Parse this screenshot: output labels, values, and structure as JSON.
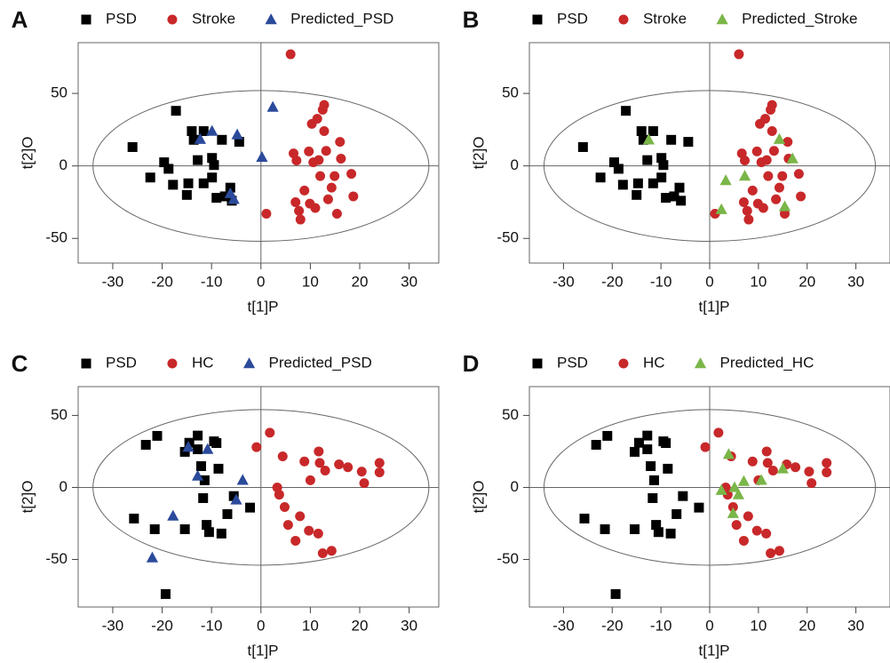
{
  "chart_data": [
    {
      "type": "scatter",
      "label": "A",
      "xlabel": "t[1]P",
      "ylabel": "t[2]O",
      "xlim": [
        -37,
        36
      ],
      "ylim": [
        -67,
        85
      ],
      "xticks": [
        -30,
        -20,
        -10,
        0,
        10,
        20,
        30
      ],
      "yticks": [
        -50,
        0,
        50
      ],
      "ellipse": [
        34,
        52
      ],
      "legend": "top",
      "series": [
        {
          "name": "PSD",
          "color": "#000000",
          "marker": "square",
          "x": [
            -17.2,
            -26,
            -22.4,
            -19.6,
            -18.7,
            -17.8,
            -15,
            -14.7,
            -14,
            -13.6,
            -11.6,
            -11.6,
            -12.8,
            -9.9,
            -9.5,
            -9,
            -7.9,
            -7.3,
            -6.2,
            -5.9,
            -4.4,
            -9.9
          ],
          "values": [
            38,
            13,
            -8,
            2.5,
            -2,
            -13,
            -20,
            -12,
            24,
            18,
            24,
            -12,
            4,
            5.5,
            0.6,
            -22,
            18,
            -21,
            -15,
            -24,
            16.6,
            -8
          ]
        },
        {
          "name": "Stroke",
          "color": "#c8282a",
          "marker": "circle",
          "x": [
            6,
            1.1,
            6.6,
            7.2,
            7,
            7.7,
            8,
            8.8,
            9.7,
            9.9,
            10.3,
            10.6,
            11,
            11.4,
            11.7,
            12,
            12.5,
            12.8,
            12.8,
            13.2,
            13.6,
            14.3,
            14.9,
            15.4,
            16,
            16.2,
            18.3,
            18.7
          ],
          "values": [
            77,
            -33,
            8.6,
            3.7,
            -25,
            -31,
            -37,
            -17,
            10,
            -26,
            29,
            2.5,
            -29,
            32.5,
            4,
            -7,
            38.7,
            42,
            24,
            10.4,
            -23,
            -15,
            -7,
            -33,
            16.6,
            5,
            -5.5,
            -21
          ]
        },
        {
          "name": "Predicted_PSD",
          "color": "#2b4a9b",
          "marker": "triangle",
          "x": [
            2.4,
            0.2,
            -9.9,
            -12.3,
            -4.8,
            -5.5,
            -6.2
          ],
          "values": [
            40.5,
            6,
            24,
            18.4,
            21.5,
            -23,
            -19
          ]
        }
      ]
    },
    {
      "type": "scatter",
      "label": "B",
      "xlabel": "t[1]P",
      "ylabel": "t[2]O",
      "xlim": [
        -37,
        37
      ],
      "ylim": [
        -67,
        85
      ],
      "xticks": [
        -30,
        -20,
        -10,
        0,
        10,
        20,
        30
      ],
      "yticks": [
        -50,
        0,
        50
      ],
      "ellipse": [
        34,
        52
      ],
      "legend": "top",
      "series": [
        {
          "name": "PSD",
          "color": "#000000",
          "marker": "square",
          "x": [
            -17.2,
            -26,
            -22.4,
            -19.6,
            -18.7,
            -17.8,
            -15,
            -14.7,
            -14,
            -13.6,
            -11.6,
            -11.6,
            -12.8,
            -9.9,
            -9.5,
            -9,
            -7.9,
            -7.3,
            -6.2,
            -5.9,
            -4.4,
            -9.9
          ],
          "values": [
            38,
            13,
            -8,
            2.5,
            -2,
            -13,
            -20,
            -12,
            24,
            18,
            24,
            -12,
            4,
            5.5,
            0.6,
            -22,
            18,
            -21,
            -15,
            -24,
            16.6,
            -8
          ]
        },
        {
          "name": "Stroke",
          "color": "#c8282a",
          "marker": "circle",
          "x": [
            6,
            1.1,
            6.6,
            7.2,
            7,
            7.7,
            8,
            8.8,
            9.7,
            9.9,
            10.3,
            10.6,
            11,
            11.4,
            11.7,
            12,
            12.5,
            12.8,
            12.8,
            13.2,
            13.6,
            14.3,
            14.9,
            15.4,
            16,
            16.2,
            18.3,
            18.7
          ],
          "values": [
            77,
            -33,
            8.6,
            3.7,
            -25,
            -31,
            -37,
            -17,
            10,
            -26,
            29,
            2.5,
            -29,
            32.5,
            4,
            -7,
            38.7,
            42,
            24,
            10.4,
            -23,
            -15,
            -7,
            -33,
            16.6,
            5,
            -5.5,
            -21
          ]
        },
        {
          "name": "Predicted_Stroke",
          "color": "#7ab648",
          "marker": "triangle",
          "x": [
            -12.5,
            3.3,
            2.4,
            7.2,
            14.3,
            17,
            15.4
          ],
          "values": [
            18,
            -10,
            -30,
            -7,
            18.4,
            5,
            -28
          ]
        }
      ]
    },
    {
      "type": "scatter",
      "label": "C",
      "xlabel": "t[1]P",
      "ylabel": "t[2]O",
      "xlim": [
        -37,
        36
      ],
      "ylim": [
        -83,
        70
      ],
      "xticks": [
        -30,
        -20,
        -10,
        0,
        10,
        20,
        30
      ],
      "yticks": [
        -50,
        0,
        50
      ],
      "ellipse": [
        34,
        54
      ],
      "legend": "top",
      "series": [
        {
          "name": "PSD",
          "color": "#000000",
          "marker": "square",
          "x": [
            -19.3,
            -23.3,
            -21,
            -25.7,
            -21.5,
            -15.4,
            -15.4,
            -14.5,
            -12.8,
            -12.8,
            -12.1,
            -11.4,
            -11,
            -10.5,
            -9.5,
            -9,
            -8,
            -8.6,
            -6.8,
            -5.5,
            -2.2,
            -11.7
          ],
          "values": [
            -74,
            29.6,
            35.8,
            -21.6,
            -29,
            -29,
            24.7,
            31,
            36,
            26.5,
            14.8,
            5,
            -26,
            -31,
            32,
            30.8,
            -32,
            13,
            -18.5,
            -6,
            -14,
            -7.4
          ]
        },
        {
          "name": "HC",
          "color": "#c8282a",
          "marker": "circle",
          "x": [
            -0.9,
            1.8,
            3.3,
            4.4,
            3.7,
            4.8,
            5.5,
            7,
            7.9,
            8.8,
            9.7,
            10,
            11.6,
            11.7,
            11.9,
            12.5,
            14.3,
            13,
            15.8,
            17.6,
            20.4,
            20.9,
            24,
            24
          ],
          "values": [
            28,
            38,
            0,
            21.6,
            -5,
            -13.6,
            -26,
            -37,
            -20,
            18,
            -30,
            5,
            -32,
            25,
            17,
            -45.7,
            -44,
            11.7,
            16,
            14,
            11,
            3,
            17,
            10.5
          ]
        },
        {
          "name": "Predicted_PSD",
          "color": "#2b4a9b",
          "marker": "triangle",
          "x": [
            -22,
            -17.8,
            -14.7,
            -12.8,
            -10.8,
            -5,
            -3.7
          ],
          "values": [
            -48.8,
            -19.8,
            28,
            8,
            26.5,
            -8.6,
            5
          ]
        }
      ]
    },
    {
      "type": "scatter",
      "label": "D",
      "xlabel": "t[1]P",
      "ylabel": "t[2]O",
      "xlim": [
        -37,
        37
      ],
      "ylim": [
        -83,
        70
      ],
      "xticks": [
        -30,
        -20,
        -10,
        0,
        10,
        20,
        30
      ],
      "yticks": [
        -50,
        0,
        50
      ],
      "ellipse": [
        34,
        54
      ],
      "legend": "top",
      "series": [
        {
          "name": "PSD",
          "color": "#000000",
          "marker": "square",
          "x": [
            -19.3,
            -23.3,
            -21,
            -25.7,
            -21.5,
            -15.4,
            -15.4,
            -14.5,
            -12.8,
            -12.8,
            -12.1,
            -11.4,
            -11,
            -10.5,
            -9.5,
            -9,
            -8,
            -8.6,
            -6.8,
            -5.5,
            -2.2,
            -11.7
          ],
          "values": [
            -74,
            29.6,
            35.8,
            -21.6,
            -29,
            -29,
            24.7,
            31,
            36,
            26.5,
            14.8,
            5,
            -26,
            -31,
            32,
            30.8,
            -32,
            13,
            -18.5,
            -6,
            -14,
            -7.4
          ]
        },
        {
          "name": "HC",
          "color": "#c8282a",
          "marker": "circle",
          "x": [
            -0.9,
            1.8,
            3.3,
            4.4,
            3.7,
            4.8,
            5.5,
            7,
            7.9,
            8.8,
            9.7,
            10,
            11.6,
            11.7,
            11.9,
            12.5,
            14.3,
            13,
            15.8,
            17.6,
            20.4,
            20.9,
            24,
            24
          ],
          "values": [
            28,
            38,
            0,
            21.6,
            -5,
            -13.6,
            -26,
            -37,
            -20,
            18,
            -30,
            5,
            -32,
            25,
            17,
            -45.7,
            -44,
            11.7,
            16,
            14,
            11,
            3,
            17,
            10.5
          ]
        },
        {
          "name": "Predicted_HC",
          "color": "#7ab648",
          "marker": "triangle",
          "x": [
            3.9,
            2.4,
            4.8,
            5.1,
            5.9,
            7,
            10.6,
            15
          ],
          "values": [
            23,
            -2,
            -18,
            0,
            -5,
            4.3,
            5,
            13
          ]
        }
      ]
    }
  ]
}
